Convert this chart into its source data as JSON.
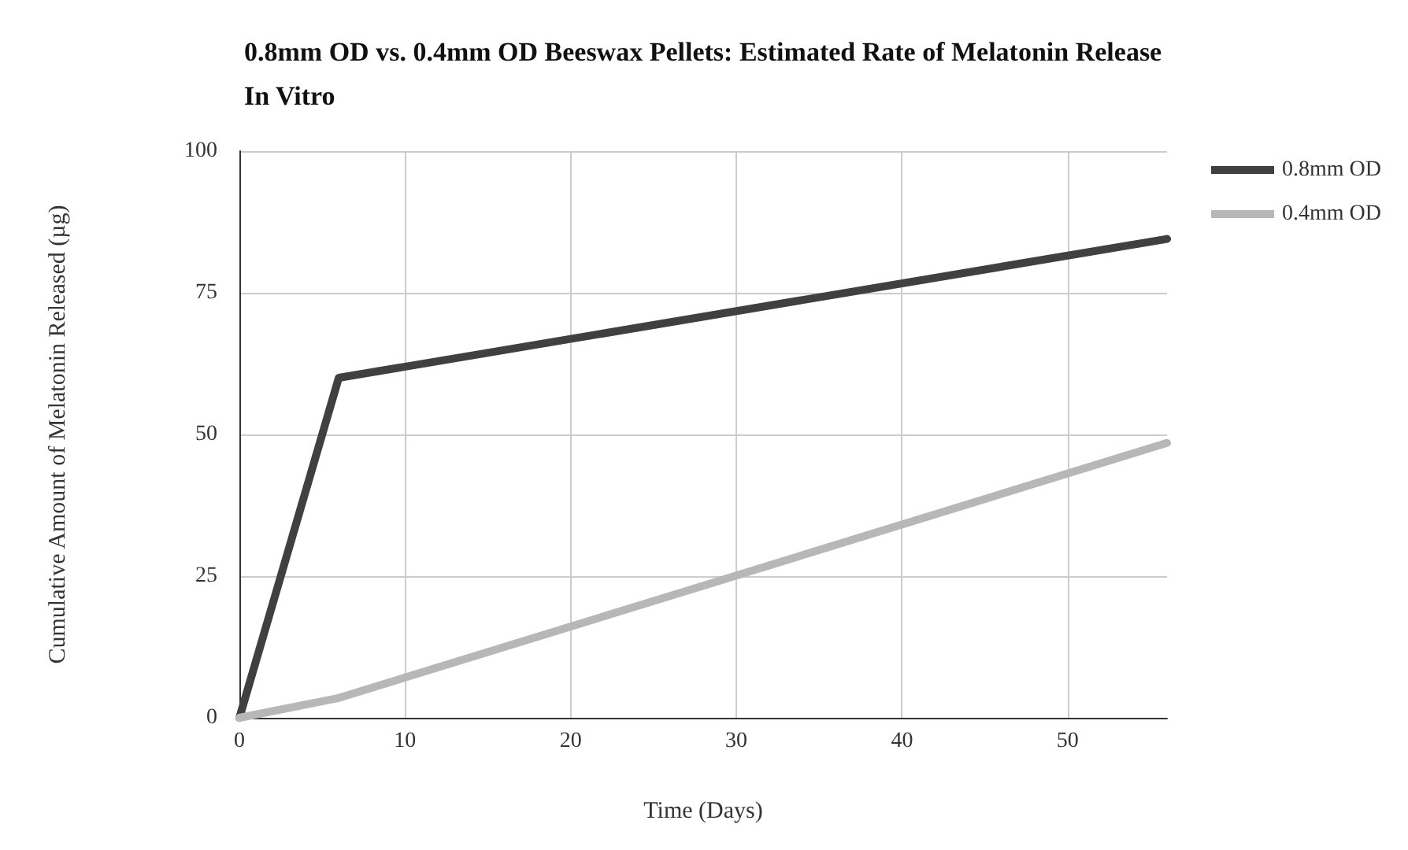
{
  "chart_data": {
    "type": "line",
    "title": "0.8mm OD vs. 0.4mm OD Beeswax Pellets: Estimated Rate of Melatonin Release In Vitro",
    "xlabel": "Time (Days)",
    "ylabel": "Cumulative Amount of Melatonin Released (µg)",
    "x": [
      0,
      6,
      56
    ],
    "series": [
      {
        "name": "0.8mm OD",
        "color": "#404040",
        "values": [
          0,
          60,
          84.5
        ]
      },
      {
        "name": "0.4mm OD",
        "color": "#b7b7b7",
        "values": [
          0,
          3.5,
          48.5
        ]
      }
    ],
    "xlim": [
      0,
      56
    ],
    "xticks": [
      0,
      10,
      20,
      30,
      40,
      50
    ],
    "ylim": [
      0,
      100
    ],
    "yticks": [
      0,
      25,
      50,
      75,
      100
    ],
    "grid": true,
    "legend": "right",
    "marker": "none",
    "line_style": "solid"
  }
}
